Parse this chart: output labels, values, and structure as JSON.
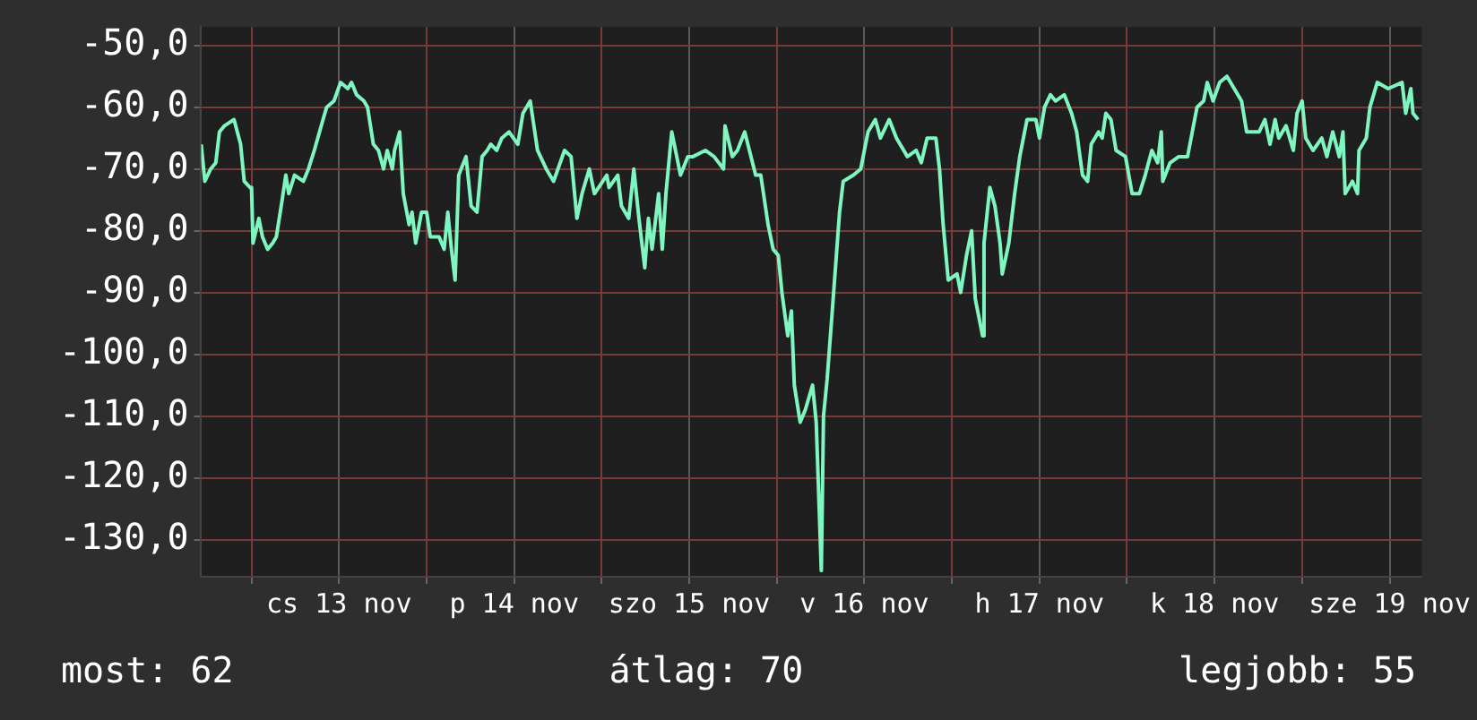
{
  "chart_data": {
    "type": "line",
    "grid": true,
    "xlim": [
      "--11-12T17:06",
      "--11-19T16:24"
    ],
    "xticks": [
      {
        "value": "--11-13T00:00",
        "label": null
      },
      {
        "value": "--11-13T12:00",
        "label": "cs 13 nov"
      },
      {
        "value": "--11-14T00:00",
        "label": null
      },
      {
        "value": "--11-14T12:00",
        "label": "p 14 nov"
      },
      {
        "value": "--11-15T00:00",
        "label": null
      },
      {
        "value": "--11-15T12:00",
        "label": "szo 15 nov"
      },
      {
        "value": "--11-16T00:00",
        "label": null
      },
      {
        "value": "--11-16T12:00",
        "label": "v 16 nov"
      },
      {
        "value": "--11-17T00:00",
        "label": null
      },
      {
        "value": "--11-17T12:00",
        "label": "h 17 nov"
      },
      {
        "value": "--11-18T00:00",
        "label": null
      },
      {
        "value": "--11-18T12:00",
        "label": "k 18 nov"
      },
      {
        "value": "--11-19T00:00",
        "label": null
      },
      {
        "value": "--11-19T12:00",
        "label": "sze 19 nov"
      }
    ],
    "ylim": [
      -136,
      -47
    ],
    "yticks": [
      {
        "value": -50,
        "label": "-50,0"
      },
      {
        "value": -60,
        "label": "-60,0"
      },
      {
        "value": -70,
        "label": "-70,0"
      },
      {
        "value": -80,
        "label": "-80,0"
      },
      {
        "value": -90,
        "label": "-90,0"
      },
      {
        "value": -100,
        "label": "-100,0"
      },
      {
        "value": -110,
        "label": "-110,0"
      },
      {
        "value": -120,
        "label": "-120,0"
      },
      {
        "value": -130,
        "label": "-130,0"
      }
    ],
    "annotations": [
      "most: 62",
      "átlag: 70",
      "legjobb: 55"
    ],
    "series": [
      {
        "color": "#7ff5c0",
        "x": [
          "--11-12T17:06",
          "--11-12T17:36",
          "--11-12T18:24",
          "--11-12T19:06",
          "--11-12T19:36",
          "--11-12T20:18",
          "--11-12T21:36",
          "--11-12T22:30",
          "--11-12T23:00",
          "--11-12T23:48",
          "--11-13T00:00",
          "--11-13T00:12",
          "--11-13T01:00",
          "--11-13T01:30",
          "--11-13T02:12",
          "--11-13T02:54",
          "--11-13T03:24",
          "--11-13T04:12",
          "--11-13T04:42",
          "--11-13T05:06",
          "--11-13T05:54",
          "--11-13T07:06",
          "--11-13T07:48",
          "--11-13T08:36",
          "--11-13T09:48",
          "--11-13T10:18",
          "--11-13T11:18",
          "--11-13T12:12",
          "--11-13T13:12",
          "--11-13T13:42",
          "--11-13T14:24",
          "--11-13T15:24",
          "--11-13T15:54",
          "--11-13T16:42",
          "--11-13T17:24",
          "--11-13T18:06",
          "--11-13T18:36",
          "--11-13T19:18",
          "--11-13T19:36",
          "--11-13T20:18",
          "--11-13T20:48",
          "--11-13T21:36",
          "--11-13T22:00",
          "--11-13T22:30",
          "--11-13T23:18",
          "--11-14T00:00",
          "--11-14T00:30",
          "--11-14T01:42",
          "--11-14T02:24",
          "--11-14T02:54",
          "--11-14T03:24",
          "--11-14T03:54",
          "--11-14T04:24",
          "--11-14T05:24",
          "--11-14T06:06",
          "--11-14T06:54",
          "--11-14T07:36",
          "--11-14T08:18",
          "--11-14T08:48",
          "--11-14T09:36",
          "--11-14T10:18",
          "--11-14T11:18",
          "--11-14T12:30",
          "--11-14T13:12",
          "--11-14T14:12",
          "--11-14T15:12",
          "--11-14T16:24",
          "--11-14T17:24",
          "--11-14T18:54",
          "--11-14T19:48",
          "--11-14T20:36",
          "--11-14T21:18",
          "--11-14T22:18",
          "--11-14T23:00",
          "--11-15T00:42",
          "--11-15T01:00",
          "--11-15T02:12",
          "--11-15T02:42",
          "--11-15T03:42",
          "--11-15T04:24",
          "--11-15T05:06",
          "--11-15T05:54",
          "--11-15T06:24",
          "--11-15T06:54",
          "--11-15T07:48",
          "--11-15T08:18",
          "--11-15T08:48",
          "--11-15T09:36",
          "--11-15T10:48",
          "--11-15T11:48",
          "--11-15T12:30",
          "--11-15T14:12",
          "--11-15T15:24",
          "--11-15T16:42",
          "--11-15T16:54",
          "--11-15T17:54",
          "--11-15T18:36",
          "--11-15T19:36",
          "--11-15T21:06",
          "--11-15T21:48",
          "--11-15T22:48",
          "--11-15T23:30",
          "--11-16T00:12",
          "--11-16T00:42",
          "--11-16T01:30",
          "--11-16T02:00",
          "--11-16T02:24",
          "--11-16T03:12",
          "--11-16T03:54",
          "--11-16T04:54",
          "--11-16T05:24",
          "--11-16T06:06",
          "--11-16T06:24",
          "--11-16T06:54",
          "--11-16T07:36",
          "--11-16T08:36",
          "--11-16T09:06",
          "--11-16T10:30",
          "--11-16T11:30",
          "--11-16T12:30",
          "--11-16T13:30",
          "--11-16T14:12",
          "--11-16T15:24",
          "--11-16T16:24",
          "--11-16T17:54",
          "--11-16T19:06",
          "--11-16T19:48",
          "--11-16T20:36",
          "--11-16T21:48",
          "--11-16T22:18",
          "--11-16T22:48",
          "--11-16T23:30",
          "--11-17T00:42",
          "--11-17T01:12",
          "--11-17T02:00",
          "--11-17T02:42",
          "--11-17T03:12",
          "--11-17T04:12",
          "--11-17T04:24",
          "--11-17T05:12",
          "--11-17T05:54",
          "--11-17T06:36",
          "--11-17T06:54",
          "--11-17T07:48",
          "--11-17T08:36",
          "--11-17T09:18",
          "--11-17T10:18",
          "--11-17T11:30",
          "--11-17T12:00",
          "--11-17T12:42",
          "--11-17T13:30",
          "--11-17T14:12",
          "--11-17T15:24",
          "--11-17T16:24",
          "--11-17T17:06",
          "--11-17T17:54",
          "--11-17T18:36",
          "--11-17T19:06",
          "--11-17T19:36",
          "--11-17T20:06",
          "--11-17T20:36",
          "--11-17T21:06",
          "--11-17T21:48",
          "--11-17T22:30",
          "--11-17T23:48",
          "--11-18T00:42",
          "--11-18T01:42",
          "--11-18T02:30",
          "--11-18T03:24",
          "--11-18T04:12",
          "--11-18T04:42",
          "--11-18T04:54",
          "--11-18T05:54",
          "--11-18T07:06",
          "--11-18T08:18",
          "--11-18T09:36",
          "--11-18T10:30",
          "--11-18T11:00",
          "--11-18T11:48",
          "--11-18T12:42",
          "--11-18T13:42",
          "--11-18T14:42",
          "--11-18T15:42",
          "--11-18T16:24",
          "--11-18T18:06",
          "--11-18T18:54",
          "--11-18T19:36",
          "--11-18T20:18",
          "--11-18T20:48",
          "--11-18T21:48",
          "--11-18T22:48",
          "--11-18T23:18",
          "--11-19T00:00",
          "--11-19T00:30",
          "--11-19T01:30",
          "--11-19T02:42",
          "--11-19T03:24",
          "--11-19T04:12",
          "--11-19T05:06",
          "--11-19T05:36",
          "--11-19T05:54",
          "--11-19T06:54",
          "--11-19T07:36",
          "--11-19T07:48",
          "--11-19T08:48",
          "--11-19T09:18",
          "--11-19T10:18",
          "--11-19T11:48",
          "--11-19T13:42",
          "--11-19T14:12",
          "--11-19T14:54",
          "--11-19T15:12",
          "--11-19T15:54"
        ],
        "values": [
          -66,
          -72,
          -70,
          -69,
          -64,
          -63,
          -62,
          -66,
          -72,
          -73,
          -73,
          -82,
          -78,
          -81,
          -83,
          -82,
          -81,
          -75,
          -71,
          -74,
          -71,
          -72,
          -70,
          -67,
          -62,
          -60,
          -59,
          -56,
          -57,
          -56,
          -58,
          -59,
          -60,
          -66,
          -67,
          -70,
          -67,
          -70,
          -67,
          -64,
          -74,
          -79,
          -77,
          -82,
          -77,
          -77,
          -81,
          -81,
          -83,
          -77,
          -83,
          -88,
          -71,
          -68,
          -76,
          -77,
          -68,
          -67,
          -66,
          -67,
          -65,
          -64,
          -66,
          -61,
          -59,
          -67,
          -70,
          -72,
          -67,
          -68,
          -78,
          -74,
          -70,
          -74,
          -71,
          -73,
          -71,
          -76,
          -78,
          -70,
          -78,
          -86,
          -78,
          -83,
          -74,
          -83,
          -74,
          -64,
          -71,
          -68,
          -68,
          -67,
          -68,
          -70,
          -63,
          -68,
          -67,
          -64,
          -71,
          -71,
          -79,
          -83,
          -84,
          -90,
          -97,
          -93,
          -105,
          -111,
          -109,
          -105,
          -111,
          -135,
          -110,
          -104,
          -93,
          -77,
          -72,
          -71,
          -70,
          -64,
          -62,
          -65,
          -62,
          -65,
          -68,
          -67,
          -69,
          -65,
          -65,
          -70,
          -79,
          -88,
          -87,
          -90,
          -84,
          -80,
          -91,
          -97,
          -82,
          -73,
          -76,
          -82,
          -87,
          -82,
          -74,
          -68,
          -62,
          -62,
          -65,
          -60,
          -58,
          -59,
          -58,
          -61,
          -64,
          -71,
          -72,
          -66,
          -65,
          -64,
          -65,
          -61,
          -62,
          -67,
          -68,
          -74,
          -74,
          -71,
          -67,
          -69,
          -64,
          -72,
          -69,
          -68,
          -68,
          -60,
          -59,
          -56,
          -59,
          -56,
          -55,
          -57,
          -59,
          -64,
          -64,
          -62,
          -66,
          -62,
          -65,
          -63,
          -67,
          -61,
          -59,
          -65,
          -67,
          -65,
          -68,
          -64,
          -68,
          -64,
          -74,
          -72,
          -74,
          -67,
          -65,
          -60,
          -56,
          -57,
          -56,
          -61,
          -57,
          -61,
          -62
        ]
      }
    ]
  }
}
